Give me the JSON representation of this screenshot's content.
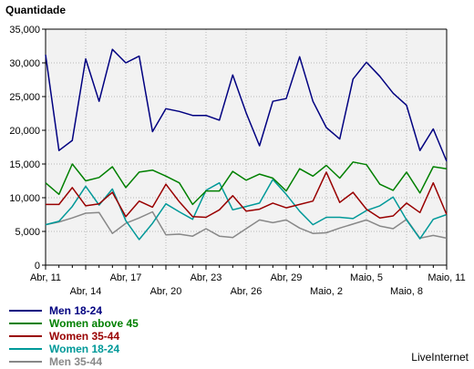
{
  "chart_data": {
    "type": "line",
    "ylabel": "Quantidade",
    "ylim": [
      0,
      35000
    ],
    "yticks": [
      0,
      5000,
      10000,
      15000,
      20000,
      25000,
      30000,
      35000
    ],
    "ytick_labels": [
      "0",
      "5,000",
      "10,000",
      "15,000",
      "20,000",
      "25,000",
      "30,000",
      "35,000"
    ],
    "grid": true,
    "x_count": 31,
    "x_ticks_top": [
      {
        "i": 0,
        "label": "Abr, 11"
      },
      {
        "i": 6,
        "label": "Abr, 17"
      },
      {
        "i": 12,
        "label": "Abr, 23"
      },
      {
        "i": 18,
        "label": "Abr, 29"
      },
      {
        "i": 24,
        "label": "Maio, 5"
      },
      {
        "i": 30,
        "label": "Maio, 11"
      }
    ],
    "x_ticks_bottom": [
      {
        "i": 3,
        "label": "Abr, 14"
      },
      {
        "i": 9,
        "label": "Abr, 20"
      },
      {
        "i": 15,
        "label": "Abr, 26"
      },
      {
        "i": 21,
        "label": "Maio, 2"
      },
      {
        "i": 27,
        "label": "Maio, 8"
      }
    ],
    "series": [
      {
        "name": "Men 18-24",
        "color": "#000080",
        "values": [
          31200,
          17000,
          18500,
          30600,
          24300,
          32000,
          30000,
          31000,
          19800,
          23200,
          22800,
          22200,
          22200,
          21500,
          28200,
          22600,
          17700,
          24300,
          24700,
          30900,
          24300,
          20400,
          18700,
          27600,
          30100,
          28000,
          25500,
          23700,
          17000,
          20200,
          15400
        ]
      },
      {
        "name": "Women above 45",
        "color": "#008000",
        "values": [
          12200,
          10500,
          15000,
          12500,
          13000,
          14600,
          11500,
          13800,
          14100,
          13200,
          12200,
          9000,
          11000,
          11000,
          13900,
          12600,
          13500,
          12900,
          11000,
          14300,
          13200,
          14800,
          12900,
          15300,
          14900,
          12000,
          11100,
          13800,
          10700,
          14600,
          14300
        ]
      },
      {
        "name": "Women 35-44",
        "color": "#990000",
        "values": [
          9000,
          9000,
          11500,
          8800,
          9100,
          10800,
          7200,
          9500,
          8600,
          12000,
          9400,
          7200,
          7100,
          8200,
          10300,
          8000,
          8300,
          9200,
          8500,
          9000,
          9500,
          13800,
          9300,
          10800,
          8300,
          7000,
          7300,
          9200,
          7800,
          12200,
          7500
        ]
      },
      {
        "name": "Women 18-24",
        "color": "#009999",
        "values": [
          6000,
          6500,
          8700,
          11700,
          8900,
          11300,
          6600,
          3800,
          6200,
          9100,
          7900,
          6800,
          11100,
          12200,
          8200,
          8700,
          9200,
          12700,
          10500,
          8000,
          6000,
          7100,
          7100,
          6900,
          8100,
          8800,
          10100,
          6700,
          3900,
          6800,
          7500
        ]
      },
      {
        "name": "Men 35-44",
        "color": "#888888",
        "values": [
          6000,
          6400,
          7000,
          7700,
          7800,
          4700,
          6200,
          7000,
          7900,
          4500,
          4600,
          4300,
          5400,
          4300,
          4100,
          5400,
          6700,
          6300,
          6700,
          5500,
          4700,
          4800,
          5500,
          6100,
          6700,
          5800,
          5400,
          6800,
          4000,
          4400,
          4000
        ]
      }
    ]
  },
  "credit": "LiveInternet"
}
